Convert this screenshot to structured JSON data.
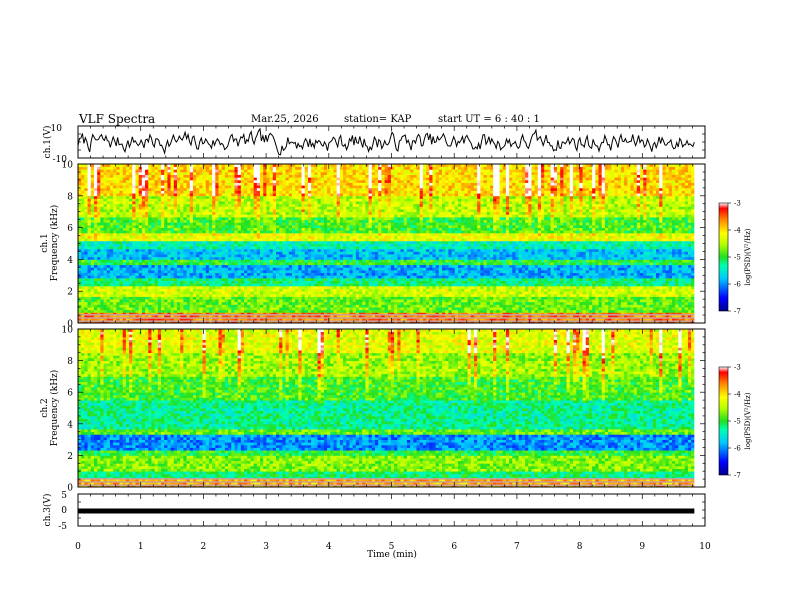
{
  "header": {
    "title": "VLF Spectra",
    "date": "Mar.25, 2026",
    "station": "station= KAP",
    "start": "start UT =  6 : 40 : 1"
  },
  "chart_data": [
    {
      "id": "ch1-waveform",
      "type": "line",
      "ylabel": "ch.1(V)",
      "ylim": [
        -10,
        10
      ],
      "yticks": [
        "10",
        "-10"
      ],
      "xlim": [
        0,
        10
      ],
      "data_end_min": 9.83,
      "note": "noisy voltage trace fluctuating roughly between -10 and 10 V"
    },
    {
      "id": "ch1-spectrogram",
      "type": "heatmap",
      "ylabel": "ch.1\nFrequency (kHz)",
      "ylabel_lines": [
        "ch.1",
        "Frequency (kHz)"
      ],
      "ylim": [
        0,
        10
      ],
      "yticks": [
        "0",
        "2",
        "4",
        "6",
        "8",
        "10"
      ],
      "xlim": [
        0,
        10
      ],
      "colorbar": {
        "label": "log(PSD)(V²/Hz)",
        "range": [
          -7,
          -3
        ],
        "ticks": [
          "-3",
          "-4",
          "-5",
          "-6",
          "-7"
        ]
      }
    },
    {
      "id": "ch2-spectrogram",
      "type": "heatmap",
      "ylabel_lines": [
        "ch.2",
        "Frequency (kHz)"
      ],
      "ylim": [
        0,
        10
      ],
      "yticks": [
        "0",
        "2",
        "4",
        "6",
        "8",
        "10"
      ],
      "xlim": [
        0,
        10
      ],
      "colorbar": {
        "label": "log(PSD)(V²/Hz)",
        "range": [
          -7,
          -3
        ],
        "ticks": [
          "-3",
          "-4",
          "-5",
          "-6",
          "-7"
        ]
      }
    },
    {
      "id": "ch3-waveform",
      "type": "line",
      "ylabel": "ch.3(V)",
      "ylim": [
        -5,
        5
      ],
      "yticks": [
        "5",
        "0",
        "-5"
      ],
      "xlim": [
        0,
        10
      ],
      "data_end_min": 9.83,
      "note": "thick near-constant trace just below 0 V"
    }
  ],
  "xaxis": {
    "label": "Time (min)",
    "ticks": [
      "0",
      "1",
      "2",
      "3",
      "4",
      "5",
      "6",
      "7",
      "8",
      "9",
      "10"
    ]
  },
  "colorbar": {
    "label": "log(PSD)(V²/Hz)",
    "ticks": [
      "-3",
      "-4",
      "-5",
      "-6",
      "-7"
    ]
  }
}
